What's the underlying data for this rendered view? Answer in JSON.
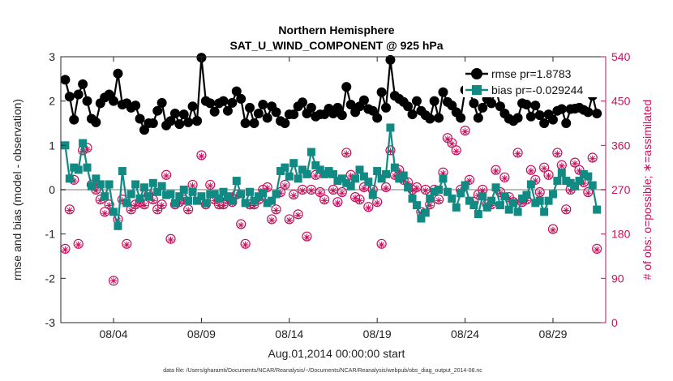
{
  "chart_data": {
    "type": "line",
    "title_line1": "Northern Hemisphere",
    "title_line2": "SAT_U_WIND_COMPONENT @ 925 hPa",
    "xlabel": "Aug.01,2014 00:00:00 start",
    "ylabel_left": "rmse and bias (model - observation)",
    "ylabel_right": "# of obs: o=possible; ∗=assimilated",
    "footnote": "data file: /Users/gharamti/Documents/NCAR/Reanalysis/~/Documents/NCAR/Reanalysis/webpub/obs_diag_output_2014-08.nc",
    "xlim": [
      1,
      32
    ],
    "ylim_left": [
      -3,
      3
    ],
    "ylim_right": [
      0,
      540
    ],
    "x_ticks": [
      4,
      9,
      14,
      19,
      24,
      29
    ],
    "x_tick_labels": [
      "08/04",
      "08/09",
      "08/14",
      "08/19",
      "08/24",
      "08/29"
    ],
    "y_ticks_left": [
      -3,
      -2,
      -1,
      0,
      1,
      2,
      3
    ],
    "y_tick_labels_left": [
      "-3",
      "-2",
      "-1",
      "0",
      "1",
      "2",
      "3"
    ],
    "y_ticks_right": [
      0,
      90,
      180,
      270,
      360,
      450,
      540
    ],
    "y_tick_labels_right": [
      "0",
      "90",
      "180",
      "270",
      "360",
      "450",
      "540"
    ],
    "legend": [
      "rmse pr=1.8783",
      "bias pr=-0.029244"
    ],
    "colors": {
      "rmse": "#000000",
      "bias": "#128a84",
      "obs": "#c8105c",
      "zero": "#bbbbbb"
    },
    "series": [
      {
        "name": "rmse pr=1.8783",
        "x": [
          1.25,
          1.5,
          1.75,
          2.0,
          2.25,
          2.5,
          2.75,
          3.0,
          3.25,
          3.5,
          3.75,
          4.0,
          4.25,
          4.5,
          4.75,
          5.0,
          5.25,
          5.5,
          5.75,
          6.0,
          6.25,
          6.5,
          6.75,
          7.0,
          7.25,
          7.5,
          7.75,
          8.0,
          8.25,
          8.5,
          8.75,
          9.0,
          9.25,
          9.5,
          9.75,
          10.0,
          10.25,
          10.5,
          10.75,
          11.0,
          11.25,
          11.5,
          11.75,
          12.0,
          12.25,
          12.5,
          12.75,
          13.0,
          13.25,
          13.5,
          13.75,
          14.0,
          14.25,
          14.5,
          14.75,
          15.0,
          15.25,
          15.5,
          15.75,
          16.0,
          16.25,
          16.5,
          16.75,
          17.0,
          17.25,
          17.5,
          17.75,
          18.0,
          18.25,
          18.5,
          18.75,
          19.0,
          19.25,
          19.5,
          19.75,
          20.0,
          20.25,
          20.5,
          20.75,
          21.0,
          21.25,
          21.5,
          21.75,
          22.0,
          22.25,
          22.5,
          22.75,
          23.0,
          23.25,
          23.5,
          23.75,
          24.0,
          24.25,
          24.5,
          24.75,
          25.0,
          25.25,
          25.5,
          25.75,
          26.0,
          26.25,
          26.5,
          26.75,
          27.0,
          27.25,
          27.5,
          27.75,
          28.0,
          28.25,
          28.5,
          28.75,
          29.0,
          29.25,
          29.5,
          29.75,
          30.0,
          30.25,
          30.5,
          30.75,
          31.0,
          31.25,
          31.5
        ],
        "values": [
          2.48,
          2.1,
          1.58,
          2.15,
          2.38,
          2.0,
          1.6,
          1.52,
          1.95,
          2.08,
          2.15,
          2.0,
          2.62,
          1.92,
          1.95,
          1.85,
          1.9,
          1.6,
          1.35,
          1.5,
          1.5,
          1.78,
          1.96,
          1.45,
          1.55,
          1.72,
          1.48,
          1.7,
          1.52,
          1.88,
          1.55,
          2.98,
          2.0,
          1.95,
          1.76,
          1.95,
          2.0,
          1.78,
          1.96,
          2.22,
          2.05,
          1.5,
          1.85,
          1.5,
          1.72,
          1.92,
          1.62,
          1.88,
          1.75,
          1.55,
          1.5,
          1.7,
          1.7,
          1.88,
          1.97,
          1.72,
          1.85,
          1.65,
          1.7,
          1.7,
          1.83,
          1.72,
          1.85,
          1.68,
          2.32,
          1.92,
          1.75,
          1.88,
          2.02,
          1.82,
          1.78,
          1.62,
          2.2,
          1.85,
          2.93,
          2.12,
          2.05,
          1.98,
          1.88,
          1.7,
          2.0,
          1.78,
          1.68,
          1.6,
          2.0,
          1.62,
          2.2,
          1.98,
          1.9,
          1.75,
          1.62,
          2.25,
          2.22,
          1.95,
          1.62,
          1.85,
          2.05,
          1.95,
          2.28,
          1.88,
          1.72,
          1.6,
          1.55,
          1.62,
          1.95,
          1.92,
          1.65,
          1.9,
          1.68,
          1.5,
          1.7,
          1.58,
          1.78,
          1.82,
          1.5,
          1.82,
          1.83,
          1.85,
          1.8,
          1.75,
          2.12,
          1.72
        ]
      },
      {
        "name": "bias pr=-0.029244",
        "x": [
          1.25,
          1.5,
          1.75,
          2.0,
          2.25,
          2.5,
          2.75,
          3.0,
          3.25,
          3.5,
          3.75,
          4.0,
          4.25,
          4.5,
          4.75,
          5.0,
          5.25,
          5.5,
          5.75,
          6.0,
          6.25,
          6.5,
          6.75,
          7.0,
          7.25,
          7.5,
          7.75,
          8.0,
          8.25,
          8.5,
          8.75,
          9.0,
          9.25,
          9.5,
          9.75,
          10.0,
          10.25,
          10.5,
          10.75,
          11.0,
          11.25,
          11.5,
          11.75,
          12.0,
          12.25,
          12.5,
          12.75,
          13.0,
          13.25,
          13.5,
          13.75,
          14.0,
          14.25,
          14.5,
          14.75,
          15.0,
          15.25,
          15.5,
          15.75,
          16.0,
          16.25,
          16.5,
          16.75,
          17.0,
          17.25,
          17.5,
          17.75,
          18.0,
          18.25,
          18.5,
          18.75,
          19.0,
          19.25,
          19.5,
          19.75,
          20.0,
          20.25,
          20.5,
          20.75,
          21.0,
          21.25,
          21.5,
          21.75,
          22.0,
          22.25,
          22.5,
          22.75,
          23.0,
          23.25,
          23.5,
          23.75,
          24.0,
          24.25,
          24.5,
          24.75,
          25.0,
          25.25,
          25.5,
          25.75,
          26.0,
          26.25,
          26.5,
          26.75,
          27.0,
          27.25,
          27.5,
          27.75,
          28.0,
          28.25,
          28.5,
          28.75,
          29.0,
          29.25,
          29.5,
          29.75,
          30.0,
          30.25,
          30.5,
          30.75,
          31.0,
          31.25,
          31.5
        ],
        "values": [
          1.0,
          0.25,
          0.5,
          0.45,
          1.05,
          0.5,
          0.08,
          0.25,
          0.12,
          -0.15,
          0.12,
          -0.5,
          -0.82,
          0.42,
          -0.3,
          -0.1,
          0.12,
          -0.2,
          0.05,
          -0.15,
          0.15,
          -0.05,
          0.08,
          -0.12,
          -0.1,
          -0.3,
          -0.15,
          0.0,
          -0.25,
          -0.05,
          -0.25,
          -0.15,
          -0.3,
          -0.1,
          -0.1,
          -0.2,
          -0.05,
          -0.15,
          -0.25,
          0.2,
          -0.1,
          -0.3,
          -0.05,
          -0.25,
          -0.15,
          -0.08,
          -0.3,
          -0.25,
          -0.1,
          0.42,
          0.5,
          0.3,
          0.6,
          0.25,
          0.45,
          0.35,
          0.85,
          0.55,
          0.45,
          0.35,
          0.42,
          0.35,
          0.2,
          0.25,
          0.15,
          0.08,
          0.25,
          0.45,
          0.3,
          0.18,
          -0.12,
          0.42,
          0.25,
          0.35,
          1.4,
          0.5,
          0.25,
          0.32,
          0.05,
          -0.2,
          -0.35,
          -0.65,
          -0.52,
          -0.2,
          -0.05,
          0.0,
          0.25,
          -0.05,
          -0.2,
          -0.4,
          -0.08,
          0.1,
          -0.25,
          -0.35,
          -0.55,
          -0.15,
          -0.4,
          -0.25,
          0.05,
          -0.35,
          -0.15,
          -0.45,
          -0.3,
          -0.5,
          -0.2,
          -0.12,
          0.12,
          -0.3,
          -0.25,
          -0.5,
          -0.25,
          -0.1,
          0.2,
          0.38,
          0.2,
          0.15,
          0.08,
          0.2,
          0.35,
          0.3,
          0.1,
          -0.45
        ]
      }
    ],
    "obs_possible": {
      "x": [
        1.25,
        1.5,
        1.75,
        2.0,
        2.25,
        2.5,
        2.75,
        3.0,
        3.25,
        3.5,
        3.75,
        4.0,
        4.25,
        4.5,
        4.75,
        5.0,
        5.25,
        5.5,
        5.75,
        6.0,
        6.25,
        6.5,
        6.75,
        7.0,
        7.25,
        7.5,
        7.75,
        8.0,
        8.25,
        8.5,
        8.75,
        9.0,
        9.25,
        9.5,
        9.75,
        10.0,
        10.25,
        10.5,
        10.75,
        11.0,
        11.25,
        11.5,
        11.75,
        12.0,
        12.25,
        12.5,
        12.75,
        13.0,
        13.25,
        13.5,
        13.75,
        14.0,
        14.25,
        14.5,
        14.75,
        15.0,
        15.25,
        15.5,
        15.75,
        16.0,
        16.25,
        16.5,
        16.75,
        17.0,
        17.25,
        17.5,
        17.75,
        18.0,
        18.25,
        18.5,
        18.75,
        19.0,
        19.25,
        19.5,
        19.75,
        20.0,
        20.25,
        20.5,
        20.75,
        21.0,
        21.25,
        21.5,
        21.75,
        22.0,
        22.25,
        22.5,
        22.75,
        23.0,
        23.25,
        23.5,
        23.75,
        24.0,
        24.25,
        24.5,
        24.75,
        25.0,
        25.25,
        25.5,
        25.75,
        26.0,
        26.25,
        26.5,
        26.75,
        27.0,
        27.25,
        27.5,
        27.75,
        28.0,
        28.25,
        28.5,
        28.75,
        29.0,
        29.25,
        29.5,
        29.75,
        30.0,
        30.25,
        30.5,
        30.75,
        31.0,
        31.25,
        31.5
      ],
      "values": [
        150,
        230,
        290,
        160,
        350,
        355,
        280,
        270,
        250,
        225,
        240,
        85,
        210,
        250,
        160,
        230,
        240,
        245,
        240,
        260,
        250,
        230,
        240,
        300,
        170,
        240,
        245,
        250,
        230,
        280,
        410,
        340,
        240,
        280,
        250,
        240,
        240,
        250,
        245,
        260,
        200,
        160,
        240,
        240,
        250,
        270,
        275,
        210,
        230,
        265,
        280,
        210,
        260,
        220,
        270,
        175,
        270,
        300,
        265,
        250,
        305,
        270,
        245,
        265,
        345,
        300,
        255,
        250,
        275,
        235,
        270,
        245,
        160,
        275,
        350,
        300,
        310,
        290,
        285,
        270,
        275,
        225,
        270,
        240,
        270,
        250,
        305,
        375,
        365,
        350,
        270,
        390,
        290,
        245,
        260,
        270,
        240,
        240,
        310,
        265,
        295,
        255,
        245,
        345,
        245,
        250,
        310,
        290,
        265,
        315,
        300,
        190,
        345,
        320,
        230,
        270,
        325,
        310,
        285,
        265,
        335,
        150
      ]
    },
    "obs_assimilated": {
      "x": [
        1.25,
        1.5,
        1.75,
        2.0,
        2.25,
        2.5,
        2.75,
        3.0,
        3.25,
        3.5,
        3.75,
        4.0,
        4.25,
        4.5,
        4.75,
        5.0,
        5.25,
        5.5,
        5.75,
        6.0,
        6.25,
        6.5,
        6.75,
        7.0,
        7.25,
        7.5,
        7.75,
        8.0,
        8.25,
        8.5,
        8.75,
        9.0,
        9.25,
        9.5,
        9.75,
        10.0,
        10.25,
        10.5,
        10.75,
        11.0,
        11.25,
        11.5,
        11.75,
        12.0,
        12.25,
        12.5,
        12.75,
        13.0,
        13.25,
        13.5,
        13.75,
        14.0,
        14.25,
        14.5,
        14.75,
        15.0,
        15.25,
        15.5,
        15.75,
        16.0,
        16.25,
        16.5,
        16.75,
        17.0,
        17.25,
        17.5,
        17.75,
        18.0,
        18.25,
        18.5,
        18.75,
        19.0,
        19.25,
        19.5,
        19.75,
        20.0,
        20.25,
        20.5,
        20.75,
        21.0,
        21.25,
        21.5,
        21.75,
        22.0,
        22.25,
        22.5,
        22.75,
        23.0,
        23.25,
        23.5,
        23.75,
        24.0,
        24.25,
        24.5,
        24.75,
        25.0,
        25.25,
        25.5,
        25.75,
        26.0,
        26.25,
        26.5,
        26.75,
        27.0,
        27.25,
        27.5,
        27.75,
        28.0,
        28.25,
        28.5,
        28.75,
        29.0,
        29.25,
        29.5,
        29.75,
        30.0,
        30.25,
        30.5,
        30.75,
        31.0,
        31.25,
        31.5
      ],
      "values": [
        148,
        228,
        288,
        158,
        348,
        352,
        278,
        268,
        248,
        222,
        238,
        85,
        208,
        248,
        158,
        228,
        238,
        243,
        238,
        258,
        248,
        228,
        238,
        298,
        168,
        238,
        243,
        248,
        228,
        278,
        408,
        338,
        238,
        278,
        248,
        238,
        238,
        248,
        243,
        258,
        198,
        158,
        238,
        238,
        248,
        268,
        273,
        208,
        228,
        263,
        278,
        208,
        258,
        218,
        268,
        173,
        268,
        298,
        263,
        248,
        303,
        268,
        243,
        263,
        343,
        298,
        253,
        248,
        273,
        233,
        268,
        243,
        158,
        273,
        348,
        298,
        308,
        288,
        283,
        268,
        273,
        223,
        268,
        238,
        268,
        248,
        303,
        373,
        363,
        348,
        268,
        388,
        288,
        243,
        258,
        268,
        238,
        238,
        308,
        263,
        293,
        253,
        243,
        343,
        243,
        248,
        308,
        288,
        263,
        313,
        298,
        188,
        343,
        318,
        228,
        268,
        323,
        308,
        283,
        263,
        333,
        148
      ]
    }
  }
}
